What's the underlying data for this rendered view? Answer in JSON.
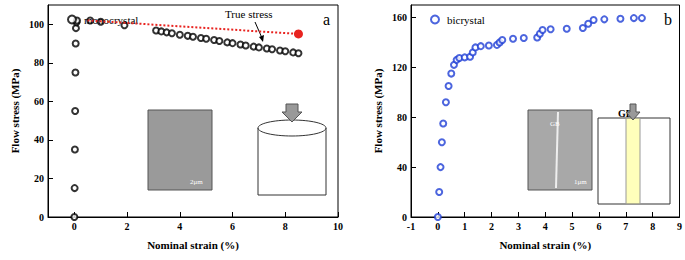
{
  "chart_data": [
    {
      "type": "scatter",
      "panel_label": "a",
      "x_label": "Nominal strain (%)",
      "y_label": "Flow stress (MPa)",
      "xlim": [
        -1,
        10
      ],
      "xticks": [
        0,
        2,
        4,
        6,
        8,
        10
      ],
      "ylim": [
        0,
        110
      ],
      "yticks": [
        0,
        20,
        40,
        60,
        80,
        100
      ],
      "legend": "upper left",
      "inset_texts": [
        "2μm"
      ],
      "series": [
        {
          "name": "monocrystal",
          "type": "scatter",
          "color": "#000000",
          "marker": "emptyCircle",
          "values": [
            [
              0,
              0
            ],
            [
              0.01,
              15
            ],
            [
              0.02,
              35
            ],
            [
              0.03,
              55
            ],
            [
              0.04,
              75
            ],
            [
              0.05,
              90
            ],
            [
              0.06,
              98
            ],
            [
              0.08,
              101
            ],
            [
              0.1,
              102
            ],
            [
              0.6,
              102
            ],
            [
              1.0,
              101.3
            ],
            [
              1.9,
              99.5
            ],
            [
              3.1,
              96.8
            ],
            [
              3.3,
              96.3
            ],
            [
              3.5,
              95.8
            ],
            [
              3.7,
              95.3
            ],
            [
              4.0,
              94.6
            ],
            [
              4.3,
              94
            ],
            [
              4.5,
              93.5
            ],
            [
              4.8,
              92.9
            ],
            [
              5.0,
              92.5
            ],
            [
              5.3,
              91.8
            ],
            [
              5.5,
              91.3
            ],
            [
              5.8,
              90.6
            ],
            [
              6.0,
              90.2
            ],
            [
              6.3,
              89.5
            ],
            [
              6.5,
              89
            ],
            [
              6.8,
              88.4
            ],
            [
              7.0,
              88
            ],
            [
              7.3,
              87.4
            ],
            [
              7.5,
              87
            ],
            [
              7.8,
              86.4
            ],
            [
              8.0,
              86
            ],
            [
              8.3,
              85.4
            ],
            [
              8.5,
              85
            ]
          ]
        },
        {
          "name": "True stress",
          "type": "line",
          "color": "#e8231f",
          "line_style": "dotted",
          "marker": "circle",
          "values": [
            [
              0.5,
              102
            ],
            [
              8.5,
              95
            ]
          ]
        }
      ]
    },
    {
      "type": "scatter",
      "panel_label": "b",
      "x_label": "Nominal strain (%)",
      "y_label": "Flow stress (MPa)",
      "xlim": [
        -1,
        9
      ],
      "xticks": [
        -1,
        0,
        1,
        2,
        3,
        4,
        5,
        6,
        7,
        8,
        9
      ],
      "ylim": [
        0,
        170
      ],
      "yticks": [
        0,
        40,
        80,
        120,
        160
      ],
      "legend": "upper left",
      "inset_texts": [
        "GB",
        "1μm",
        "GB"
      ],
      "series": [
        {
          "name": "bicrystal",
          "type": "scatter",
          "color": "#1f3fd6",
          "marker": "emptyCircle",
          "values": [
            [
              0,
              0
            ],
            [
              0.05,
              20
            ],
            [
              0.1,
              40
            ],
            [
              0.15,
              60
            ],
            [
              0.2,
              75
            ],
            [
              0.3,
              92
            ],
            [
              0.4,
              105
            ],
            [
              0.5,
              115
            ],
            [
              0.6,
              122
            ],
            [
              0.7,
              126
            ],
            [
              0.8,
              127.5
            ],
            [
              1.0,
              128
            ],
            [
              1.2,
              128.5
            ],
            [
              1.3,
              132
            ],
            [
              1.4,
              136
            ],
            [
              1.6,
              137
            ],
            [
              1.9,
              137.5
            ],
            [
              2.2,
              138
            ],
            [
              2.3,
              140
            ],
            [
              2.4,
              142
            ],
            [
              2.8,
              143
            ],
            [
              3.2,
              143.5
            ],
            [
              3.7,
              144
            ],
            [
              3.8,
              147
            ],
            [
              3.9,
              150
            ],
            [
              4.2,
              150.5
            ],
            [
              4.8,
              151
            ],
            [
              5.4,
              151.5
            ],
            [
              5.6,
              155
            ],
            [
              5.8,
              158
            ],
            [
              6.2,
              158.5
            ],
            [
              6.8,
              159
            ],
            [
              7.3,
              159.5
            ],
            [
              7.6,
              159.5
            ]
          ]
        }
      ]
    }
  ]
}
